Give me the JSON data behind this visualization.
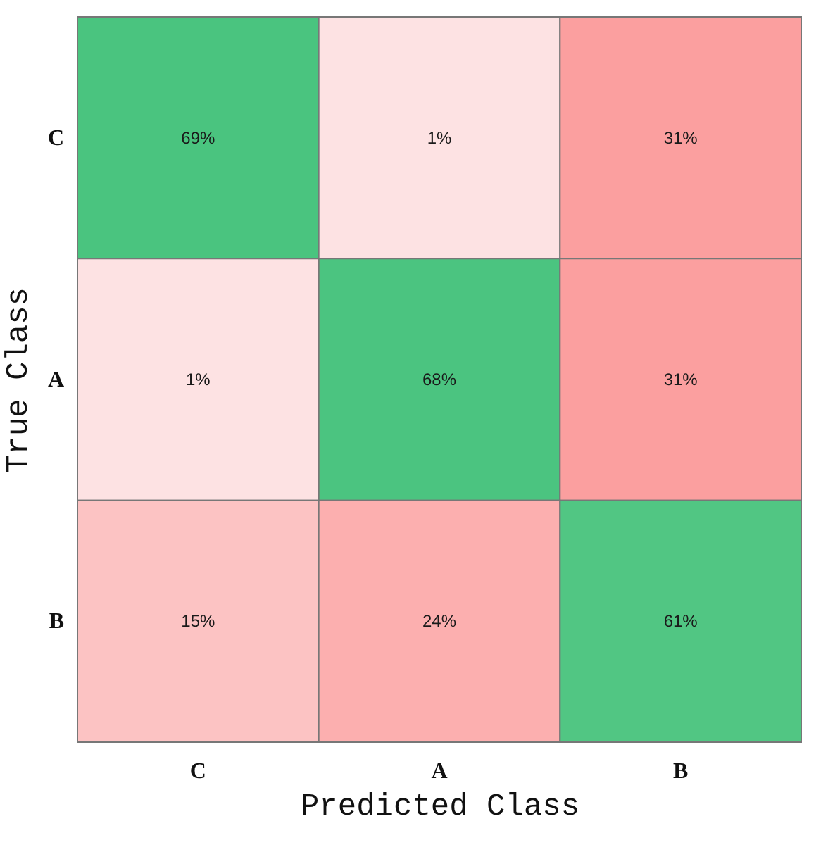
{
  "chart_data": {
    "type": "heatmap",
    "xlabel": "Predicted Class",
    "ylabel": "True Class",
    "categories": [
      "C",
      "A",
      "B"
    ],
    "y_categories": [
      "C",
      "A",
      "B"
    ],
    "cells": [
      [
        69,
        1,
        31
      ],
      [
        1,
        68,
        31
      ],
      [
        15,
        24,
        61
      ]
    ],
    "cell_labels": [
      [
        "69%",
        "1%",
        "31%"
      ],
      [
        "1%",
        "68%",
        "31%"
      ],
      [
        "15%",
        "24%",
        "61%"
      ]
    ],
    "grid": false,
    "legend": false
  }
}
